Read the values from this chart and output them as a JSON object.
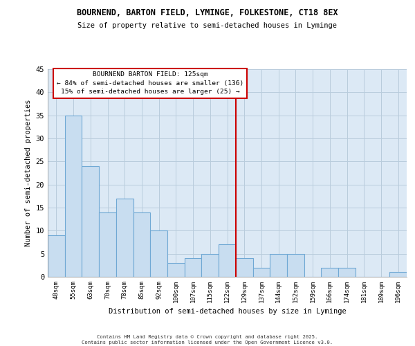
{
  "title": "BOURNEND, BARTON FIELD, LYMINGE, FOLKESTONE, CT18 8EX",
  "subtitle": "Size of property relative to semi-detached houses in Lyminge",
  "xlabel": "Distribution of semi-detached houses by size in Lyminge",
  "ylabel": "Number of semi-detached properties",
  "categories": [
    "48sqm",
    "55sqm",
    "63sqm",
    "70sqm",
    "78sqm",
    "85sqm",
    "92sqm",
    "100sqm",
    "107sqm",
    "115sqm",
    "122sqm",
    "129sqm",
    "137sqm",
    "144sqm",
    "152sqm",
    "159sqm",
    "166sqm",
    "174sqm",
    "181sqm",
    "189sqm",
    "196sqm"
  ],
  "values": [
    9,
    35,
    24,
    14,
    17,
    14,
    10,
    3,
    4,
    5,
    7,
    4,
    2,
    5,
    5,
    0,
    2,
    2,
    0,
    0,
    1
  ],
  "bar_color": "#c8ddf0",
  "bar_edge_color": "#6fa8d4",
  "grid_color": "#b8ccdc",
  "background_color": "#dce9f5",
  "vline_color": "#cc0000",
  "annotation_text": "BOURNEND BARTON FIELD: 125sqm\n← 84% of semi-detached houses are smaller (136)\n15% of semi-detached houses are larger (25) →",
  "annotation_box_color": "#ffffff",
  "annotation_box_edge": "#cc0000",
  "ylim": [
    0,
    45
  ],
  "footer_line1": "Contains HM Land Registry data © Crown copyright and database right 2025.",
  "footer_line2": "Contains public sector information licensed under the Open Government Licence v3.0."
}
